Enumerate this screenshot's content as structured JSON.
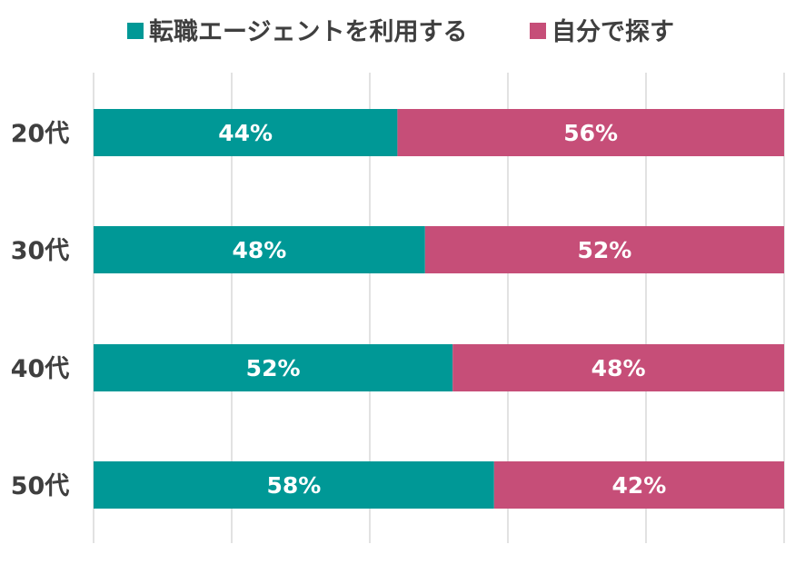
{
  "chart_data": {
    "type": "bar",
    "orientation": "horizontal",
    "stacked": "percent",
    "categories": [
      "20代",
      "30代",
      "40代",
      "50代"
    ],
    "series": [
      {
        "name": "転職エージェントを利用する",
        "values": [
          44,
          48,
          52,
          58
        ],
        "labels": [
          "44%",
          "48%",
          "52%",
          "58%"
        ],
        "color": "#009896"
      },
      {
        "name": "自分で探す",
        "values": [
          56,
          52,
          48,
          42
        ],
        "labels": [
          "56%",
          "52%",
          "48%",
          "42%"
        ],
        "color": "#c64e78"
      }
    ],
    "xlim": [
      0,
      100
    ],
    "grid": true,
    "legend": "top"
  }
}
